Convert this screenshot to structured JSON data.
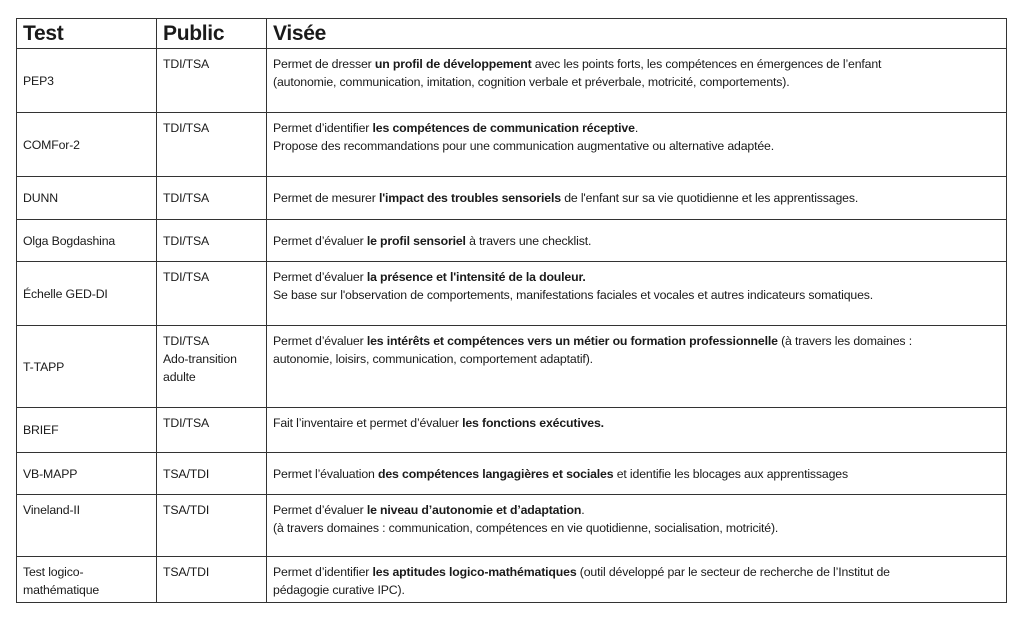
{
  "headers": {
    "test": "Test",
    "public": "Public",
    "visee": "Visée"
  },
  "rows": [
    {
      "test": [
        "PEP3"
      ],
      "public": [
        "TDI/TSA"
      ],
      "visee": [
        [
          {
            "t": "Permet de dresser ",
            "b": false
          },
          {
            "t": "un profil de développement",
            "b": true
          },
          {
            "t": " avec les points forts, les compétences en émergences de l’enfant",
            "b": false
          }
        ],
        [
          {
            "t": "(autonomie, communication, imitation, cognition verbale et préverbale, motricité, comportements).",
            "b": false
          }
        ]
      ]
    },
    {
      "test": [
        "COMFor-2"
      ],
      "public": [
        "TDI/TSA"
      ],
      "visee": [
        [
          {
            "t": "Permet d’identifier ",
            "b": false
          },
          {
            "t": "les compétences de communication réceptive",
            "b": true
          },
          {
            "t": ".",
            "b": false
          }
        ],
        [
          {
            "t": "Propose des recommandations pour une communication augmentative ou alternative adaptée.",
            "b": false
          }
        ]
      ]
    },
    {
      "test": [
        "DUNN"
      ],
      "public": [
        "TDI/TSA"
      ],
      "visee": [
        [
          {
            "t": "Permet de mesurer ",
            "b": false
          },
          {
            "t": "l'impact des troubles sensoriels",
            "b": true
          },
          {
            "t": " de l'enfant sur sa vie quotidienne et les apprentissages.",
            "b": false
          }
        ]
      ]
    },
    {
      "test": [
        "Olga Bogdashina"
      ],
      "public": [
        "TDI/TSA"
      ],
      "visee": [
        [
          {
            "t": "Permet d’évaluer ",
            "b": false
          },
          {
            "t": "le profil sensoriel",
            "b": true
          },
          {
            "t": " à travers une checklist.",
            "b": false
          }
        ]
      ]
    },
    {
      "test": [
        "Échelle GED-DI"
      ],
      "public": [
        "TDI/TSA"
      ],
      "visee": [
        [
          {
            "t": "Permet d’évaluer ",
            "b": false
          },
          {
            "t": "la présence et l'intensité de la douleur.",
            "b": true
          }
        ],
        [
          {
            "t": "Se base sur l'observation de comportements, manifestations faciales et vocales et autres indicateurs somatiques.",
            "b": false
          }
        ]
      ]
    },
    {
      "test": [
        "T-TAPP"
      ],
      "public": [
        "TDI/TSA",
        "Ado-transition",
        "adulte"
      ],
      "visee": [
        [
          {
            "t": "Permet d’évaluer ",
            "b": false
          },
          {
            "t": "les intérêts et compétences vers un métier ou formation professionnelle",
            "b": true
          },
          {
            "t": " (à travers les domaines :",
            "b": false
          }
        ],
        [
          {
            "t": "autonomie, loisirs, communication, comportement adaptatif).",
            "b": false
          }
        ]
      ]
    },
    {
      "test": [
        "BRIEF"
      ],
      "public": [
        "TDI/TSA"
      ],
      "visee": [
        [
          {
            "t": "Fait l’inventaire et permet d’évaluer ",
            "b": false
          },
          {
            "t": "les fonctions exécutives.",
            "b": true
          }
        ]
      ]
    },
    {
      "test": [
        "VB-MAPP"
      ],
      "public": [
        "TSA/TDI"
      ],
      "visee": [
        [
          {
            "t": "Permet l’évaluation ",
            "b": false
          },
          {
            "t": "des compétences langagières et sociales",
            "b": true
          },
          {
            "t": " et identifie les blocages aux apprentissages",
            "b": false
          }
        ]
      ]
    },
    {
      "test": [
        "Vineland-II"
      ],
      "public": [
        "TSA/TDI"
      ],
      "visee": [
        [
          {
            "t": "Permet d’évaluer ",
            "b": false
          },
          {
            "t": "le niveau d’autonomie et d’adaptation",
            "b": true
          },
          {
            "t": ".",
            "b": false
          }
        ],
        [
          {
            "t": "(à travers domaines : communication, compétences en vie quotidienne, socialisation, motricité).",
            "b": false
          }
        ]
      ]
    },
    {
      "test": [
        "Test logico-",
        "mathématique"
      ],
      "public": [
        "TSA/TDI"
      ],
      "visee": [
        [
          {
            "t": "Permet d’identifier ",
            "b": false
          },
          {
            "t": "les aptitudes logico-mathématiques",
            "b": true
          },
          {
            "t": " (outil développé par le secteur de recherche de l’Institut de",
            "b": false
          }
        ],
        [
          {
            "t": "pédagogie curative IPC).",
            "b": false
          }
        ]
      ]
    }
  ]
}
